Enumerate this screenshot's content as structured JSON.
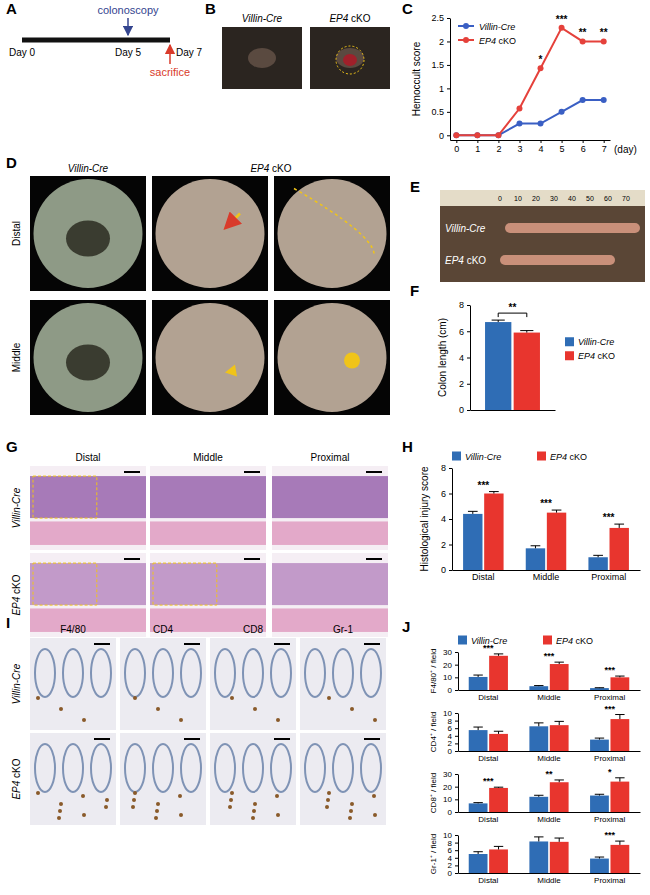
{
  "figure": {
    "panel_labels": [
      "A",
      "B",
      "C",
      "D",
      "E",
      "F",
      "G",
      "H",
      "I",
      "J"
    ],
    "panel_a": {
      "top_label": "colonoscopy",
      "bottom_label": "sacrifice",
      "days": [
        "Day 0",
        "Day 5",
        "Day 7"
      ]
    },
    "panel_b": {
      "labels": [
        "Villin-Cre",
        "EP4 cKO"
      ]
    },
    "panel_d": {
      "columns": [
        "Villin-Cre",
        "EP4 cKO"
      ],
      "rows": [
        "Distal",
        "Middle"
      ]
    },
    "panel_e": {
      "labels": [
        "Villin-Cre",
        "EP4 cKO"
      ],
      "ruler": [
        0,
        10,
        20,
        30,
        40,
        50,
        60,
        70
      ]
    },
    "panel_g": {
      "columns": [
        "Distal",
        "Middle",
        "Proximal"
      ],
      "rows": [
        "Villin-Cre",
        "EP4 cKO"
      ]
    },
    "panel_i": {
      "columns": [
        "F4/80",
        "CD4",
        "CD8",
        "Gr-1"
      ],
      "rows": [
        "Villin-Cre",
        "EP4 cKO"
      ]
    }
  },
  "chart_data": [
    {
      "type": "line",
      "y_label": "Hemoccult score",
      "x_label": "(day)",
      "x": [
        0,
        1,
        2,
        3,
        4,
        5,
        6,
        7
      ],
      "xlim": [
        -0.3,
        7.3
      ],
      "xticks": [
        0,
        1,
        2,
        3,
        4,
        5,
        6,
        7
      ],
      "ylim": [
        -0.1,
        2.5
      ],
      "yticks": [
        0,
        0.5,
        1,
        1.5,
        2,
        2.5
      ],
      "legend": "top-left",
      "marker": "circle",
      "series": [
        {
          "name": "Villin-Cre",
          "color": "#3a5fc4",
          "values": [
            0,
            0,
            0,
            0.25,
            0.25,
            0.5,
            0.75,
            0.75
          ]
        },
        {
          "name": "EP4 cKO",
          "color": "#e5413b",
          "values": [
            0,
            0,
            0,
            0.57,
            1.43,
            2.29,
            2,
            2
          ]
        }
      ],
      "significance": [
        null,
        null,
        null,
        null,
        "*",
        "***",
        "**",
        "**"
      ]
    },
    {
      "type": "bar",
      "y_label": "Colon length (cm)",
      "categories": [
        null
      ],
      "ylim": [
        0,
        8
      ],
      "yticks": [
        0,
        2,
        4,
        6,
        8
      ],
      "legend": "right",
      "series": [
        {
          "name": "Villin-Cre",
          "color": "#2f6db5",
          "values": [
            6.7
          ],
          "errors": [
            0.15
          ]
        },
        {
          "name": "EP4 cKO",
          "color": "#e8352e",
          "values": [
            5.9
          ],
          "errors": [
            0.15
          ]
        }
      ],
      "significance": [
        "**"
      ]
    },
    {
      "type": "bar",
      "y_label": "Histological injury score",
      "categories": [
        "Distal",
        "Middle",
        "Proximal"
      ],
      "ylim": [
        0,
        8
      ],
      "yticks": [
        0,
        2,
        4,
        6,
        8
      ],
      "legend": "top",
      "series": [
        {
          "name": "Villin-Cre",
          "color": "#2f6db5",
          "values": [
            4.4,
            1.7,
            1.0
          ],
          "errors": [
            0.2,
            0.2,
            0.15
          ]
        },
        {
          "name": "EP4 cKO",
          "color": "#e8352e",
          "values": [
            6.0,
            4.5,
            3.3
          ],
          "errors": [
            0.15,
            0.2,
            0.3
          ]
        }
      ],
      "significance": [
        "***",
        "***",
        "***"
      ]
    },
    {
      "type": "bar",
      "y_label": "F4/80⁺ / field",
      "categories": [
        "Distal",
        "Middle",
        "Proximal"
      ],
      "ylim": [
        0,
        30
      ],
      "yticks": [
        0,
        10,
        20,
        30
      ],
      "legend": "top",
      "series": [
        {
          "name": "Villin-Cre",
          "color": "#2f6db5",
          "values": [
            10.3,
            3.0,
            1.5
          ],
          "errors": [
            1.5,
            0.5,
            0.3
          ]
        },
        {
          "name": "EP4 cKO",
          "color": "#e8352e",
          "values": [
            27,
            20.5,
            10
          ],
          "errors": [
            1.5,
            1.5,
            1
          ]
        }
      ],
      "significance": [
        "***",
        "***",
        "***"
      ]
    },
    {
      "type": "bar",
      "y_label": "CD4⁺ / field",
      "categories": [
        "Distal",
        "Middle",
        "Proximal"
      ],
      "ylim": [
        0,
        10
      ],
      "yticks": [
        0,
        2,
        4,
        6,
        8,
        10
      ],
      "series": [
        {
          "name": "Villin-Cre",
          "color": "#2f6db5",
          "values": [
            5.5,
            6.5,
            3.0
          ],
          "errors": [
            0.8,
            0.9,
            0.4
          ]
        },
        {
          "name": "EP4 cKO",
          "color": "#e8352e",
          "values": [
            4.5,
            6.8,
            8.4
          ],
          "errors": [
            0.7,
            1.0,
            1.2
          ]
        }
      ],
      "significance": [
        null,
        null,
        "***"
      ]
    },
    {
      "type": "bar",
      "y_label": "CD8⁺ / field",
      "categories": [
        "Distal",
        "Middle",
        "Proximal"
      ],
      "ylim": [
        0,
        30
      ],
      "yticks": [
        0,
        10,
        20,
        30
      ],
      "series": [
        {
          "name": "Villin-Cre",
          "color": "#2f6db5",
          "values": [
            6.8,
            12,
            13
          ],
          "errors": [
            0.6,
            1.2,
            1
          ]
        },
        {
          "name": "EP4 cKO",
          "color": "#e8352e",
          "values": [
            19,
            23.5,
            24
          ],
          "errors": [
            0.6,
            1.8,
            3
          ]
        }
      ],
      "significance": [
        "***",
        "**",
        "*"
      ]
    },
    {
      "type": "bar",
      "y_label": "Gr-1⁺ / field",
      "categories": [
        "Distal",
        "Middle",
        "Proximal"
      ],
      "ylim": [
        0,
        10
      ],
      "yticks": [
        0,
        2,
        4,
        6,
        8,
        10
      ],
      "series": [
        {
          "name": "Villin-Cre",
          "color": "#2f6db5",
          "values": [
            5,
            8.3,
            3.8
          ],
          "errors": [
            0.6,
            1.2,
            0.4
          ]
        },
        {
          "name": "EP4 cKO",
          "color": "#e8352e",
          "values": [
            6.2,
            8.2,
            7.4
          ],
          "errors": [
            0.8,
            1.0,
            1.0
          ]
        }
      ],
      "significance": [
        null,
        null,
        "***"
      ]
    }
  ]
}
